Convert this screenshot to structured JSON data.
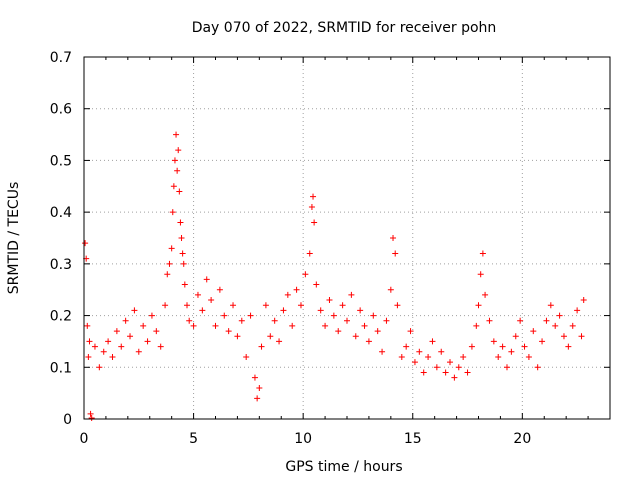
{
  "chart_data": {
    "type": "scatter",
    "title": "Day 070 of 2022, SRMTID for receiver pohn",
    "xlabel": "GPS time / hours",
    "ylabel": "SRMTID / TECUs",
    "xlim": [
      0,
      24
    ],
    "ylim": [
      0,
      0.7
    ],
    "xticks": [
      0,
      5,
      10,
      15,
      20
    ],
    "xtick_labels": [
      "0",
      "5",
      "10",
      "15",
      "20"
    ],
    "yticks": [
      0,
      0.1,
      0.2,
      0.3,
      0.4,
      0.5,
      0.6,
      0.7
    ],
    "ytick_labels": [
      "0",
      "0.1",
      "0.2",
      "0.3",
      "0.4",
      "0.5",
      "0.6",
      "0.7"
    ],
    "grid": true,
    "marker": "plus",
    "color": "#ff0000",
    "series": [
      {
        "name": "SRMTID",
        "x": [
          0.05,
          0.1,
          0.15,
          0.2,
          0.25,
          0.3,
          0.35,
          0.5,
          0.7,
          0.9,
          1.1,
          1.3,
          1.5,
          1.7,
          1.9,
          2.1,
          2.3,
          2.5,
          2.7,
          2.9,
          3.1,
          3.3,
          3.5,
          3.7,
          3.8,
          3.9,
          4.0,
          4.05,
          4.1,
          4.15,
          4.2,
          4.25,
          4.3,
          4.35,
          4.4,
          4.45,
          4.5,
          4.55,
          4.6,
          4.7,
          4.8,
          5.0,
          5.2,
          5.4,
          5.6,
          5.8,
          6.0,
          6.2,
          6.4,
          6.6,
          6.8,
          7.0,
          7.2,
          7.4,
          7.6,
          7.8,
          7.9,
          8.0,
          8.1,
          8.3,
          8.5,
          8.7,
          8.9,
          9.1,
          9.3,
          9.5,
          9.7,
          9.9,
          10.1,
          10.3,
          10.4,
          10.45,
          10.5,
          10.6,
          10.8,
          11.0,
          11.2,
          11.4,
          11.6,
          11.8,
          12.0,
          12.2,
          12.4,
          12.6,
          12.8,
          13.0,
          13.2,
          13.4,
          13.6,
          13.8,
          14.0,
          14.1,
          14.2,
          14.3,
          14.5,
          14.7,
          14.9,
          15.1,
          15.3,
          15.5,
          15.7,
          15.9,
          16.1,
          16.3,
          16.5,
          16.7,
          16.9,
          17.1,
          17.3,
          17.5,
          17.7,
          17.9,
          18.0,
          18.1,
          18.2,
          18.3,
          18.5,
          18.7,
          18.9,
          19.1,
          19.3,
          19.5,
          19.7,
          19.9,
          20.1,
          20.3,
          20.5,
          20.7,
          20.9,
          21.1,
          21.3,
          21.5,
          21.7,
          21.9,
          22.1,
          22.3,
          22.5,
          22.7,
          22.8
        ],
        "y": [
          0.34,
          0.31,
          0.18,
          0.12,
          0.15,
          0.01,
          0.002,
          0.14,
          0.1,
          0.13,
          0.15,
          0.12,
          0.17,
          0.14,
          0.19,
          0.16,
          0.21,
          0.13,
          0.18,
          0.15,
          0.2,
          0.17,
          0.14,
          0.22,
          0.28,
          0.3,
          0.33,
          0.4,
          0.45,
          0.5,
          0.55,
          0.48,
          0.52,
          0.44,
          0.38,
          0.35,
          0.32,
          0.3,
          0.26,
          0.22,
          0.19,
          0.18,
          0.24,
          0.21,
          0.27,
          0.23,
          0.18,
          0.25,
          0.2,
          0.17,
          0.22,
          0.16,
          0.19,
          0.12,
          0.2,
          0.08,
          0.04,
          0.06,
          0.14,
          0.22,
          0.16,
          0.19,
          0.15,
          0.21,
          0.24,
          0.18,
          0.25,
          0.22,
          0.28,
          0.32,
          0.41,
          0.43,
          0.38,
          0.26,
          0.21,
          0.18,
          0.23,
          0.2,
          0.17,
          0.22,
          0.19,
          0.24,
          0.16,
          0.21,
          0.18,
          0.15,
          0.2,
          0.17,
          0.13,
          0.19,
          0.25,
          0.35,
          0.32,
          0.22,
          0.12,
          0.14,
          0.17,
          0.11,
          0.13,
          0.09,
          0.12,
          0.15,
          0.1,
          0.13,
          0.09,
          0.11,
          0.08,
          0.1,
          0.12,
          0.09,
          0.14,
          0.18,
          0.22,
          0.28,
          0.32,
          0.24,
          0.19,
          0.15,
          0.12,
          0.14,
          0.1,
          0.13,
          0.16,
          0.19,
          0.14,
          0.12,
          0.17,
          0.1,
          0.15,
          0.19,
          0.22,
          0.18,
          0.2,
          0.16,
          0.14,
          0.18,
          0.21,
          0.16,
          0.23
        ]
      }
    ]
  }
}
